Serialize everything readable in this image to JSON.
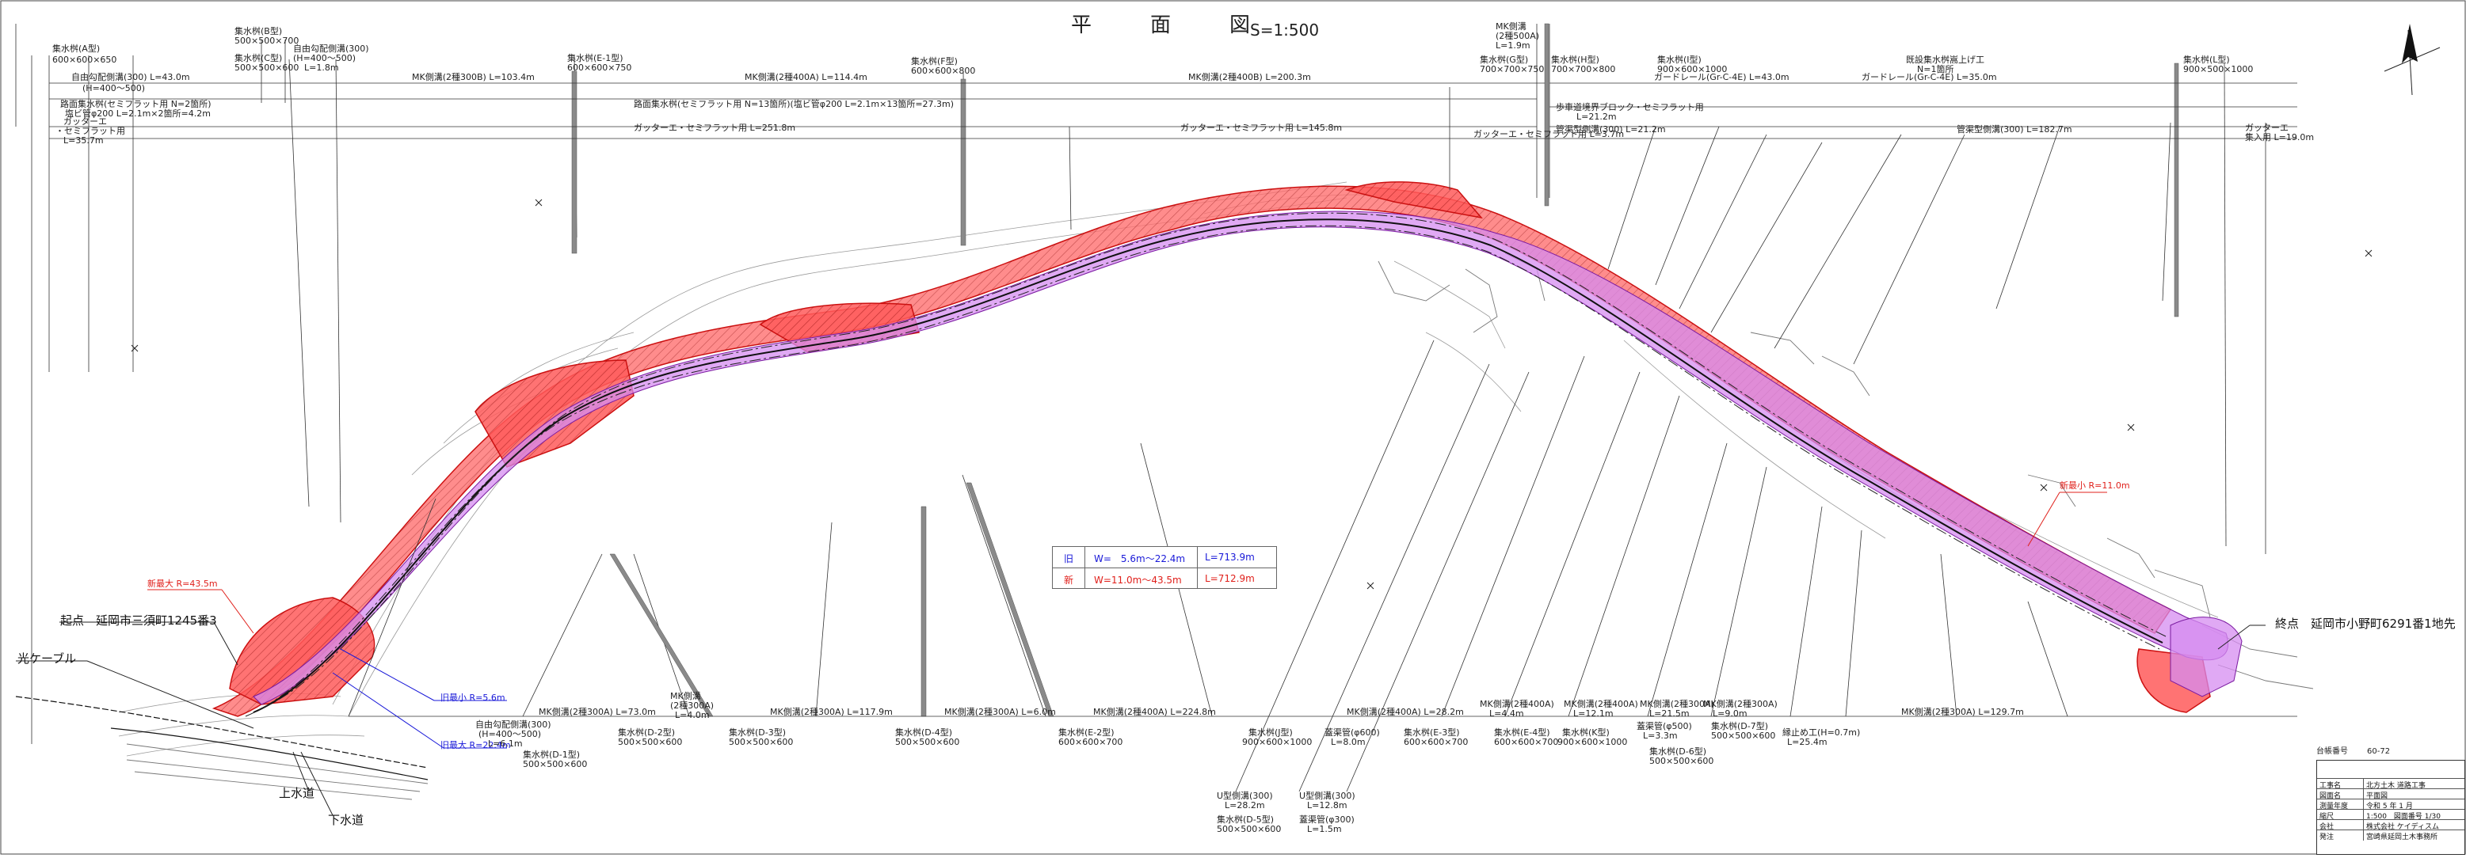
{
  "title": "平　面　図",
  "scale": "S=1:500",
  "legend": {
    "old": {
      "tag": "旧",
      "width": "W=　5.6m〜22.4m",
      "length": "L=713.9m"
    },
    "new": {
      "tag": "新",
      "width": "W=11.0m〜43.5m",
      "length": "L=712.9m"
    }
  },
  "points": {
    "start": "起点　延岡市三須町1245番3",
    "end": "終点　延岡市小野町6291番1地先",
    "cable": "光ケーブル",
    "water": "上水道",
    "sewer": "下水道"
  },
  "radius_labels": {
    "new_max": "新最大 R=43.5m",
    "new_min": "新最小 R=11.0m",
    "old_min": "旧最小 R=5.6m",
    "old_max": "旧最大 R=22.4m"
  },
  "top_annotations": [
    {
      "key": "a1",
      "text": "集水桝(A型)"
    },
    {
      "key": "a2",
      "text": "600×600×650"
    },
    {
      "key": "a3",
      "text": "集水桝(B型)"
    },
    {
      "key": "a4",
      "text": "500×500×700"
    },
    {
      "key": "a5",
      "text": "集水桝(C型)"
    },
    {
      "key": "a6",
      "text": "500×500×600"
    },
    {
      "key": "a7",
      "text": "自由勾配側溝(300)"
    },
    {
      "key": "a8",
      "text": "(H=400〜500)"
    },
    {
      "key": "a9",
      "text": "L=1.8m"
    },
    {
      "key": "a10",
      "text": "集水桝(E-1型)"
    },
    {
      "key": "a11",
      "text": "600×600×750"
    },
    {
      "key": "a12",
      "text": "集水桝(F型)"
    },
    {
      "key": "a13",
      "text": "600×600×800"
    },
    {
      "key": "a14",
      "text": "MK側溝"
    },
    {
      "key": "a15",
      "text": "(2種500A)"
    },
    {
      "key": "a16",
      "text": "L=1.9m"
    },
    {
      "key": "a17",
      "text": "集水桝(G型)"
    },
    {
      "key": "a18",
      "text": "700×700×750"
    },
    {
      "key": "a19",
      "text": "集水桝(H型)"
    },
    {
      "key": "a20",
      "text": "700×700×800"
    },
    {
      "key": "a21",
      "text": "集水桝(I型)"
    },
    {
      "key": "a22",
      "text": "900×600×1000"
    },
    {
      "key": "a23",
      "text": "既設集水桝嵩上げ工"
    },
    {
      "key": "a24",
      "text": "N=1箇所"
    },
    {
      "key": "a25",
      "text": "集水桝(L型)"
    },
    {
      "key": "a26",
      "text": "900×500×1000"
    }
  ],
  "top_runs": [
    {
      "key": "r1",
      "text": "自由勾配側溝(300) L=43.0m"
    },
    {
      "key": "r2",
      "text": "(H=400〜500)"
    },
    {
      "key": "r3",
      "text": "MK側溝(2種300B) L=103.4m"
    },
    {
      "key": "r4",
      "text": "MK側溝(2種400A) L=114.4m"
    },
    {
      "key": "r5",
      "text": "MK側溝(2種400B) L=200.3m"
    },
    {
      "key": "r6",
      "text": "ガードレール(Gr-C-4E) L=43.0m"
    },
    {
      "key": "r7",
      "text": "ガードレール(Gr-C-4E) L=35.0m"
    },
    {
      "key": "r8",
      "text": "路面集水桝(セミフラット用 N=2箇所)"
    },
    {
      "key": "r9",
      "text": "塩ビ管φ200 L=2.1m×2箇所=4.2m"
    },
    {
      "key": "r10",
      "text": "路面集水桝(セミフラット用 N=13箇所)(塩ビ管φ200 L=2.1m×13箇所=27.3m)"
    },
    {
      "key": "r11",
      "text": "ガッターエ"
    },
    {
      "key": "r12",
      "text": "・セミフラット用"
    },
    {
      "key": "r13",
      "text": "L=35.7m"
    },
    {
      "key": "r14",
      "text": "ガッターエ・セミフラット用 L=251.8m"
    },
    {
      "key": "r15",
      "text": "ガッターエ・セミフラット用 L=145.8m"
    },
    {
      "key": "r16",
      "text": "ガッターエ・セミフラット用 L=3.7m"
    },
    {
      "key": "r17",
      "text": "歩車道境界ブロック・セミフラット用"
    },
    {
      "key": "r18",
      "text": "L=21.2m"
    },
    {
      "key": "r19",
      "text": "管渠型側溝(300) L=21.2m"
    },
    {
      "key": "r20",
      "text": "管渠型側溝(300) L=182.7m"
    },
    {
      "key": "r21",
      "text": "ガッターエ"
    },
    {
      "key": "r22",
      "text": "集入用 L=19.0m"
    }
  ],
  "bottom_annotations": [
    {
      "key": "b1",
      "text": "MK側溝(2種300A) L=73.0m"
    },
    {
      "key": "b2",
      "text": "MK側溝"
    },
    {
      "key": "b3",
      "text": "(2種300A)"
    },
    {
      "key": "b4",
      "text": "L=4.0m"
    },
    {
      "key": "b5",
      "text": "MK側溝(2種300A) L=117.9m"
    },
    {
      "key": "b6",
      "text": "MK側溝(2種300A) L=6.0m"
    },
    {
      "key": "b7",
      "text": "MK側溝(2種400A) L=224.8m"
    },
    {
      "key": "b8",
      "text": "MK側溝(2種400A) L=28.2m"
    },
    {
      "key": "b9",
      "text": "MK側溝(2種400A)"
    },
    {
      "key": "b10",
      "text": "L=4.4m"
    },
    {
      "key": "b11",
      "text": "MK側溝(2種400A)"
    },
    {
      "key": "b12",
      "text": "L=12.1m"
    },
    {
      "key": "b13",
      "text": "MK側溝(2種300A)"
    },
    {
      "key": "b14",
      "text": "L=21.5m"
    },
    {
      "key": "b15",
      "text": "MK側溝(2種300A)"
    },
    {
      "key": "b16",
      "text": "L=9.0m"
    },
    {
      "key": "b17",
      "text": "MK側溝(2種300A) L=129.7m"
    },
    {
      "key": "b18",
      "text": "自由勾配側溝(300)"
    },
    {
      "key": "b19",
      "text": "(H=400〜500)"
    },
    {
      "key": "b20",
      "text": "L=6.1m"
    },
    {
      "key": "b21",
      "text": "集水桝(D-1型)"
    },
    {
      "key": "b22",
      "text": "500×500×600"
    },
    {
      "key": "b23",
      "text": "集水桝(D-2型)"
    },
    {
      "key": "b24",
      "text": "500×500×600"
    },
    {
      "key": "b25",
      "text": "集水桝(D-3型)"
    },
    {
      "key": "b26",
      "text": "500×500×600"
    },
    {
      "key": "b27",
      "text": "集水桝(D-4型)"
    },
    {
      "key": "b28",
      "text": "500×500×600"
    },
    {
      "key": "b29",
      "text": "集水桝(E-2型)"
    },
    {
      "key": "b30",
      "text": "600×600×700"
    },
    {
      "key": "b31",
      "text": "集水桝(J型)"
    },
    {
      "key": "b32",
      "text": "900×600×1000"
    },
    {
      "key": "b33",
      "text": "U型側溝(300)"
    },
    {
      "key": "b34",
      "text": "L=28.2m"
    },
    {
      "key": "b35",
      "text": "集水桝(D-5型)"
    },
    {
      "key": "b36",
      "text": "500×500×600"
    },
    {
      "key": "b37",
      "text": "蓋渠管(φ600)"
    },
    {
      "key": "b38",
      "text": "L=8.0m"
    },
    {
      "key": "b39",
      "text": "U型側溝(300)"
    },
    {
      "key": "b40",
      "text": "L=12.8m"
    },
    {
      "key": "b41",
      "text": "蓋渠管(φ300)"
    },
    {
      "key": "b42",
      "text": "L=1.5m"
    },
    {
      "key": "b43",
      "text": "集水桝(E-3型)"
    },
    {
      "key": "b44",
      "text": "600×600×700"
    },
    {
      "key": "b45",
      "text": "集水桝(E-4型)"
    },
    {
      "key": "b46",
      "text": "600×600×700"
    },
    {
      "key": "b47",
      "text": "集水桝(K型)"
    },
    {
      "key": "b48",
      "text": "900×600×1000"
    },
    {
      "key": "b49",
      "text": "蓋渠管(φ500)"
    },
    {
      "key": "b50",
      "text": "L=3.3m"
    },
    {
      "key": "b51",
      "text": "集水桝(D-7型)"
    },
    {
      "key": "b52",
      "text": "500×500×600"
    },
    {
      "key": "b53",
      "text": "集水桝(D-6型)"
    },
    {
      "key": "b54",
      "text": "500×500×600"
    },
    {
      "key": "b55",
      "text": "縁止め工(H=0.7m)"
    },
    {
      "key": "b56",
      "text": "L=25.4m"
    }
  ],
  "title_block": {
    "number_label": "台帳番号",
    "number": "60-72",
    "rows": [
      {
        "k": "工事名",
        "v": "北方土木 道路工事"
      },
      {
        "k": "図面名",
        "v": "平面図"
      },
      {
        "k": "測量年度",
        "v": "令和 5 年 1 月"
      },
      {
        "k": "縮尺",
        "v": "1:500　図面番号 1/30"
      },
      {
        "k": "会社",
        "v": "株式会社 ケイディスム"
      },
      {
        "k": "発注",
        "v": "宮崎県延岡土木事務所"
      }
    ]
  }
}
